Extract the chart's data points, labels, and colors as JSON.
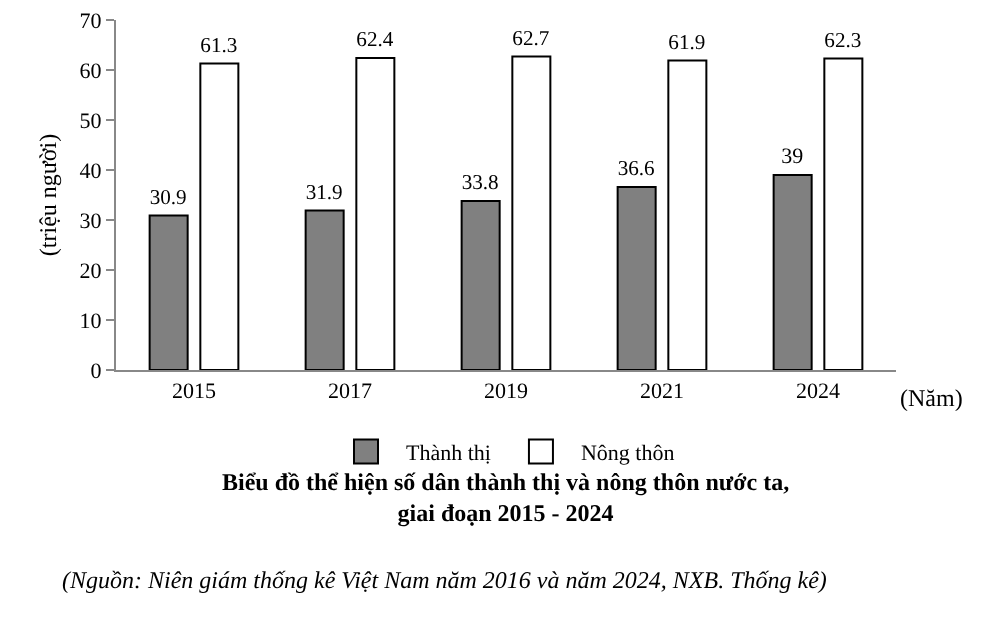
{
  "chart_data": {
    "type": "bar",
    "title": "Biểu đồ thể hiện số dân thành thị và nông thôn nước ta,\ngiai đoạn 2015 - 2024",
    "xlabel": "(Năm)",
    "ylabel": "(triệu người)",
    "categories": [
      "2015",
      "2017",
      "2019",
      "2021",
      "2024"
    ],
    "series": [
      {
        "name": "Thành thị",
        "color": "#808080",
        "values": [
          30.9,
          31.9,
          33.8,
          36.6,
          39
        ]
      },
      {
        "name": "Nông thôn",
        "color": "#ffffff",
        "values": [
          61.3,
          62.4,
          62.7,
          61.9,
          62.3
        ]
      }
    ],
    "ylim": [
      0,
      70
    ],
    "yticks": [
      0,
      10,
      20,
      30,
      40,
      50,
      60,
      70
    ],
    "grid": false,
    "legend": "bottom",
    "data_labels": true,
    "annotations": [
      "(Nguồn: Niên giám thống kê Việt Nam năm 2016 và năm 2024, NXB. Thống kê)"
    ]
  }
}
